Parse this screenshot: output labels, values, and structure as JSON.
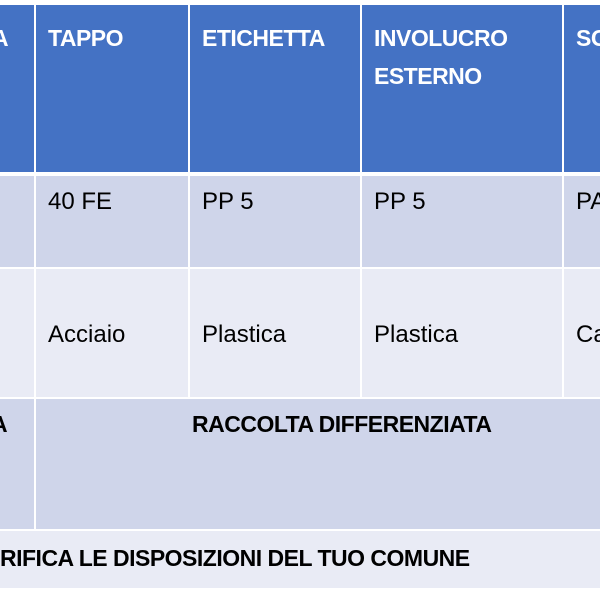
{
  "table": {
    "headers": [
      "A",
      "TAPPO",
      "ETICHETTA",
      "INVOLUCRO\nESTERNO",
      "SO"
    ],
    "header_lines": {
      "involucro_1": "INVOLUCRO",
      "involucro_2": "ESTERNO"
    },
    "row_codes": [
      "",
      "40 FE",
      "PP 5",
      "PP 5",
      "PA"
    ],
    "row_materials": [
      "",
      "Acciaio",
      "Plastica",
      "Plastica",
      "Ca"
    ],
    "row_disposal": {
      "first": "A",
      "merged": "RACCOLTA DIFFERENZIATA"
    },
    "footer": "RIFICA LE DISPOSIZIONI DEL TUO COMUNE"
  },
  "colors": {
    "header": "#4472C4",
    "row_dark": "#CFD5EA",
    "row_light": "#E9EBF5"
  }
}
